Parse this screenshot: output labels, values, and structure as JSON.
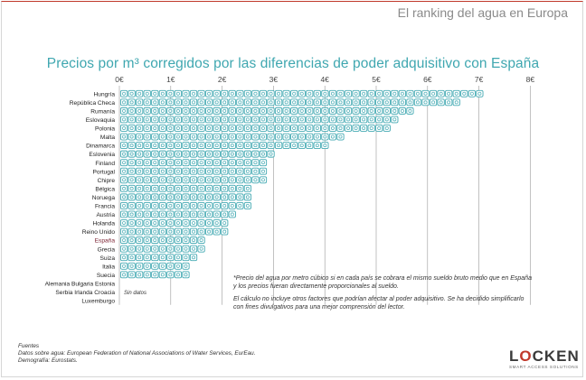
{
  "header": {
    "title": "El ranking del agua en Europa"
  },
  "chart_data": {
    "type": "bar",
    "title": "Precios por m³ corregidos por las diferencias de poder adquisitivo con España",
    "x_ticks": [
      "0€",
      "1€",
      "2€",
      "3€",
      "4€",
      "5€",
      "6€",
      "7€",
      "8€"
    ],
    "xlim": [
      0,
      8
    ],
    "orientation": "horizontal",
    "categories": [
      "Hungría",
      "República Checa",
      "Rumanía",
      "Eslovaquia",
      "Polonia",
      "Malta",
      "Dinamarca",
      "Eslovenia",
      "Finland",
      "Portugal",
      "Chipre",
      "Bélgica",
      "Noruega",
      "Francia",
      "Austria",
      "Holanda",
      "Reino Unido",
      "España",
      "Grecia",
      "Suiza",
      "Italia",
      "Suecia",
      "Alemania Bulgaria Estonia",
      "Serbia Irlanda Croacia",
      "Luxemburgo"
    ],
    "values": [
      7.0,
      6.6,
      5.7,
      5.4,
      5.3,
      4.3,
      4.0,
      3.0,
      2.9,
      2.8,
      2.8,
      2.6,
      2.5,
      2.5,
      2.3,
      2.1,
      2.1,
      1.7,
      1.6,
      1.5,
      1.4,
      1.3,
      null,
      null,
      null
    ],
    "highlight": "España",
    "no_data_label": "Sin datos",
    "colors": {
      "icon": "#45aab3",
      "highlight_label": "#7a2030",
      "title": "#3fa7b0"
    }
  },
  "notes": {
    "note1_line1": "*Precio del agua por metro cúbico si en cada país se cobrara el mismo sueldo bruto medio que en España",
    "note1_line2": "y los precios fueran directamente proporcionales al sueldo.",
    "note2_line1": "El cálculo no incluye otros factores que podrían afectar al poder adquisitivo. Se ha decidido simplificarlo",
    "note2_line2": "con fines divulgativos para una mejor comprensión del lector."
  },
  "sources": {
    "heading": "Fuentes",
    "water": "Datos sobre agua: European Federation of National Associations of Water Services, EurEau.",
    "demography": "Demografía: Eurostats."
  },
  "logo": {
    "word_a": "L",
    "word_o": "O",
    "word_b": "CKEN",
    "tagline": "SMART ACCESS SOLUTIONS"
  }
}
